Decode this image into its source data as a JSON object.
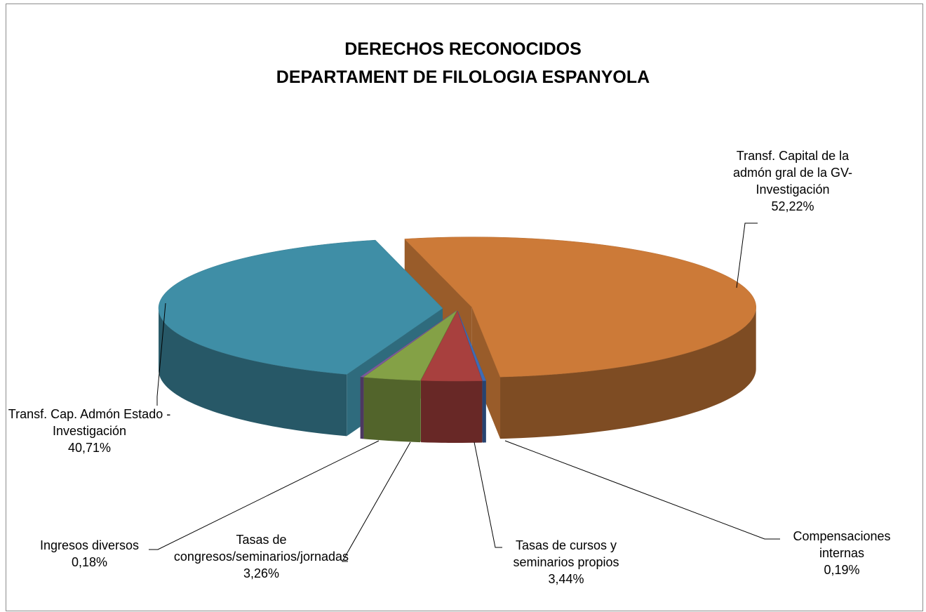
{
  "chart_data": {
    "type": "pie3d",
    "title": "DERECHOS RECONOCIDOS",
    "subtitle": "DEPARTAMENT DE FILOLOGIA ESPANYOLA",
    "categories": [
      "Transf. Capital de la admón gral de la GV-Investigación",
      "Compensaciones internas",
      "Tasas de cursos y seminarios propios",
      "Tasas de congresos/seminarios/jornadas",
      "Ingresos diversos",
      "Transf. Cap. Admón Estado - Investigación"
    ],
    "values": [
      52.22,
      0.19,
      3.44,
      3.26,
      0.18,
      40.71
    ],
    "value_labels": [
      "52,22%",
      "0,19%",
      "3,44%",
      "3,26%",
      "0,18%",
      "40,71%"
    ],
    "colors": [
      "#cc7a38",
      "#3f6cb5",
      "#a8403e",
      "#84a146",
      "#7b5a9c",
      "#3f8ea6"
    ]
  }
}
